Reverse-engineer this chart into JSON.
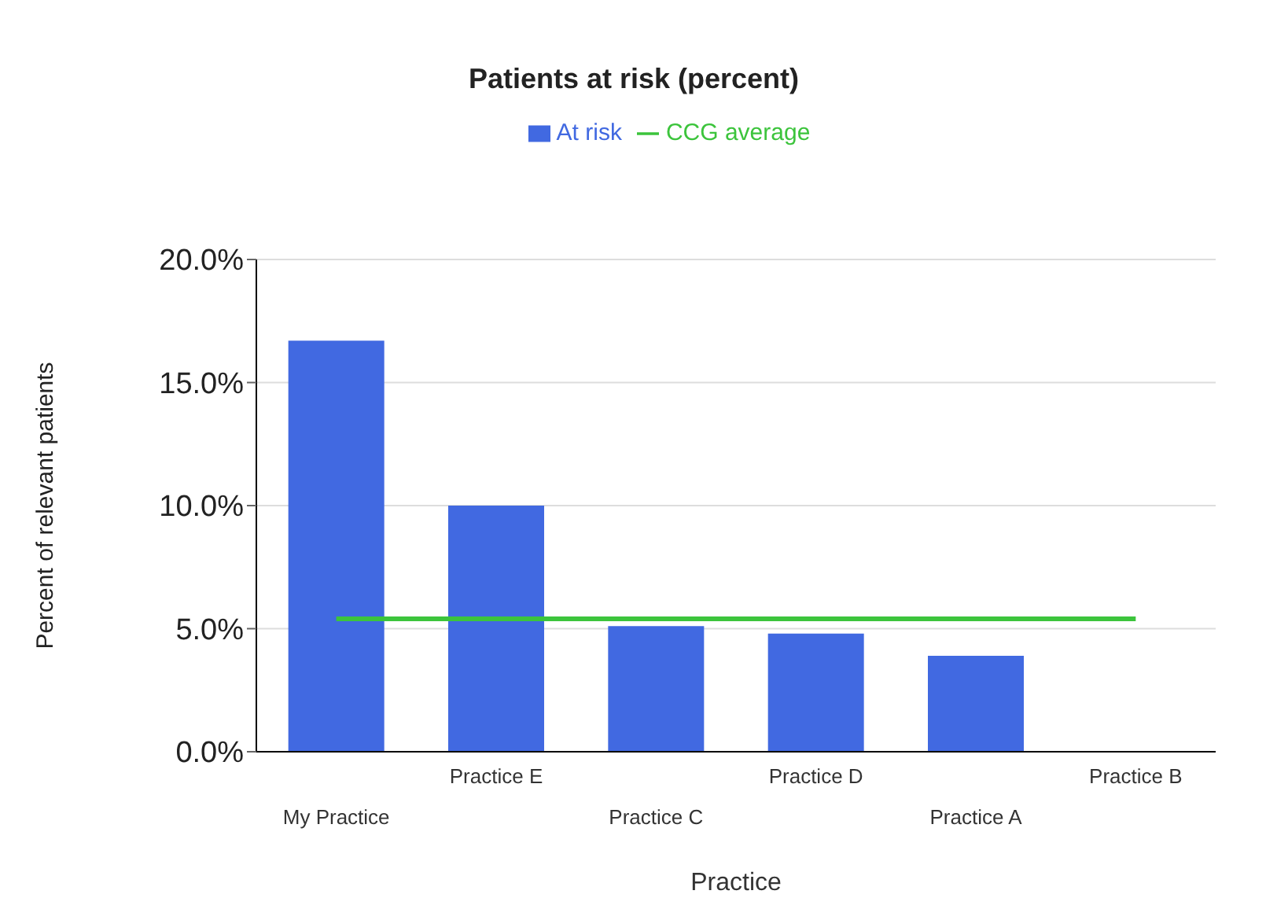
{
  "chart_data": {
    "type": "bar",
    "title": "Patients at risk (percent)",
    "xlabel": "Practice",
    "ylabel": "Percent of relevant patients",
    "categories": [
      "My Practice",
      "Practice E",
      "Practice C",
      "Practice D",
      "Practice A",
      "Practice B"
    ],
    "series": [
      {
        "name": "At risk",
        "color": "#4169e1",
        "values": [
          16.7,
          10.0,
          5.1,
          4.8,
          3.9,
          0
        ]
      },
      {
        "name": "CCG average",
        "type": "line",
        "color": "#3cc43c",
        "values": [
          5.4,
          5.4,
          5.4,
          5.4,
          5.4,
          5.4
        ]
      }
    ],
    "ylim": [
      0,
      20
    ],
    "yticks": [
      {
        "value": 0,
        "label": "0.0%"
      },
      {
        "value": 5,
        "label": "5.0%"
      },
      {
        "value": 10,
        "label": "10.0%"
      },
      {
        "value": 15,
        "label": "15.0%"
      },
      {
        "value": 20,
        "label": "20.0%"
      }
    ],
    "grid": "y",
    "legend": "top",
    "marker": "none"
  }
}
